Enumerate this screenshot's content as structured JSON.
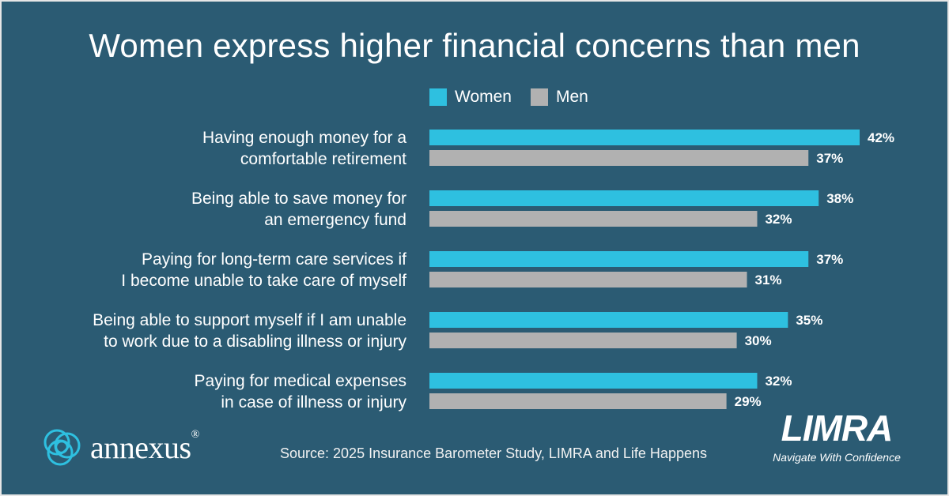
{
  "colors": {
    "background": "#2b5b73",
    "women": "#2ec0e0",
    "men": "#b1b1b1"
  },
  "chart_data": {
    "type": "bar",
    "orientation": "horizontal",
    "title": "Women express higher financial concerns than men",
    "categories": [
      [
        "Having enough money for a",
        "comfortable retirement"
      ],
      [
        "Being able to save money for",
        "an emergency fund"
      ],
      [
        "Paying for long-term care services if",
        "I become unable to take care of myself"
      ],
      [
        "Being able to support myself if I am unable",
        "to work due to a disabling illness or injury"
      ],
      [
        "Paying for medical expenses",
        "in case of illness or injury"
      ]
    ],
    "series": [
      {
        "name": "Women",
        "values": [
          42,
          38,
          37,
          35,
          32
        ],
        "labels": [
          "42%",
          "38%",
          "37%",
          "35%",
          "32%"
        ]
      },
      {
        "name": "Men",
        "values": [
          37,
          32,
          31,
          30,
          29
        ],
        "labels": [
          "37%",
          "32%",
          "31%",
          "30%",
          "29%"
        ]
      }
    ],
    "unit": "%",
    "legend_position": "top",
    "grid": false
  },
  "legend": {
    "women": "Women",
    "men": "Men"
  },
  "footer": {
    "brand_left": "annexus",
    "registered": "®",
    "source": "Source: 2025 Insurance Barometer Study, LIMRA and Life Happens",
    "brand_right": "LIMRA",
    "tagline": "Navigate With Confidence"
  }
}
